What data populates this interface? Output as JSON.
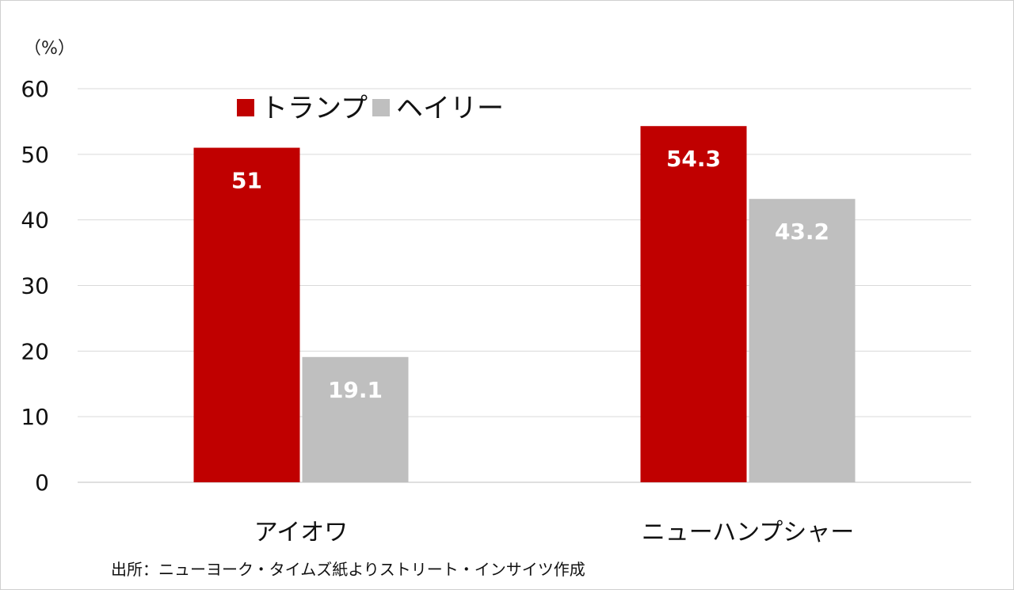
{
  "chart_data": {
    "type": "bar",
    "unit_label": "（%）",
    "categories": [
      "アイオワ",
      "ニューハンプシャー"
    ],
    "series": [
      {
        "name": "トランプ",
        "values": [
          51,
          54.3
        ],
        "value_labels": [
          "51",
          "54.3"
        ],
        "color": "#c00000"
      },
      {
        "name": "ヘイリー",
        "values": [
          19.1,
          43.2
        ],
        "value_labels": [
          "19.1",
          "43.2"
        ],
        "color": "#bfbfbf"
      }
    ],
    "ylim": [
      0,
      60
    ],
    "yticks": [
      "0",
      "10",
      "20",
      "30",
      "40",
      "50",
      "60"
    ],
    "grid": true,
    "legend_position": "top-left",
    "source": "出所：ニューヨーク・タイムズ紙よりストリート・インサイツ作成"
  }
}
